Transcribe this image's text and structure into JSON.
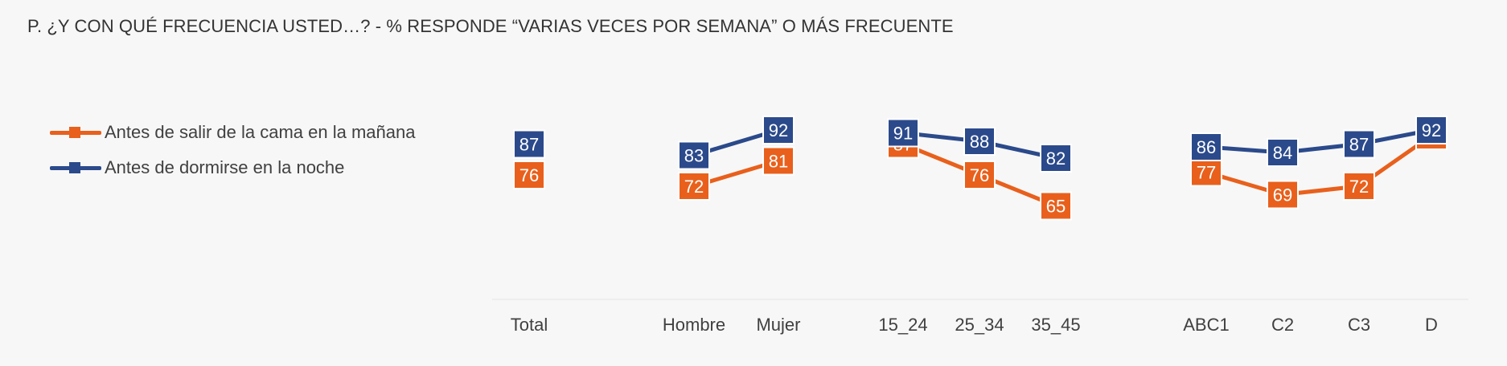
{
  "chart_data": {
    "type": "line",
    "title": "P. ¿Y CON QUÉ FRECUENCIA USTED…? - % RESPONDE “VARIAS VECES POR SEMANA” O MÁS FRECUENTE",
    "categories": [
      "Total",
      "Hombre",
      "Mujer",
      "15_24",
      "25_34",
      "35_45",
      "ABC1",
      "C2",
      "C3",
      "D"
    ],
    "groups": [
      [
        "Total"
      ],
      [
        "Hombre",
        "Mujer"
      ],
      [
        "15_24",
        "25_34",
        "35_45"
      ],
      [
        "ABC1",
        "C2",
        "C3",
        "D"
      ]
    ],
    "series": [
      {
        "name": "Antes de salir de la cama en la mañana",
        "color": "#e8601c",
        "values": [
          76,
          72,
          81,
          87,
          76,
          65,
          77,
          69,
          72,
          90
        ]
      },
      {
        "name": "Antes de dormirse en la noche",
        "color": "#2b4a8b",
        "values": [
          87,
          83,
          92,
          91,
          88,
          82,
          86,
          84,
          87,
          92
        ]
      }
    ],
    "legend_position": "left",
    "grid": false
  }
}
